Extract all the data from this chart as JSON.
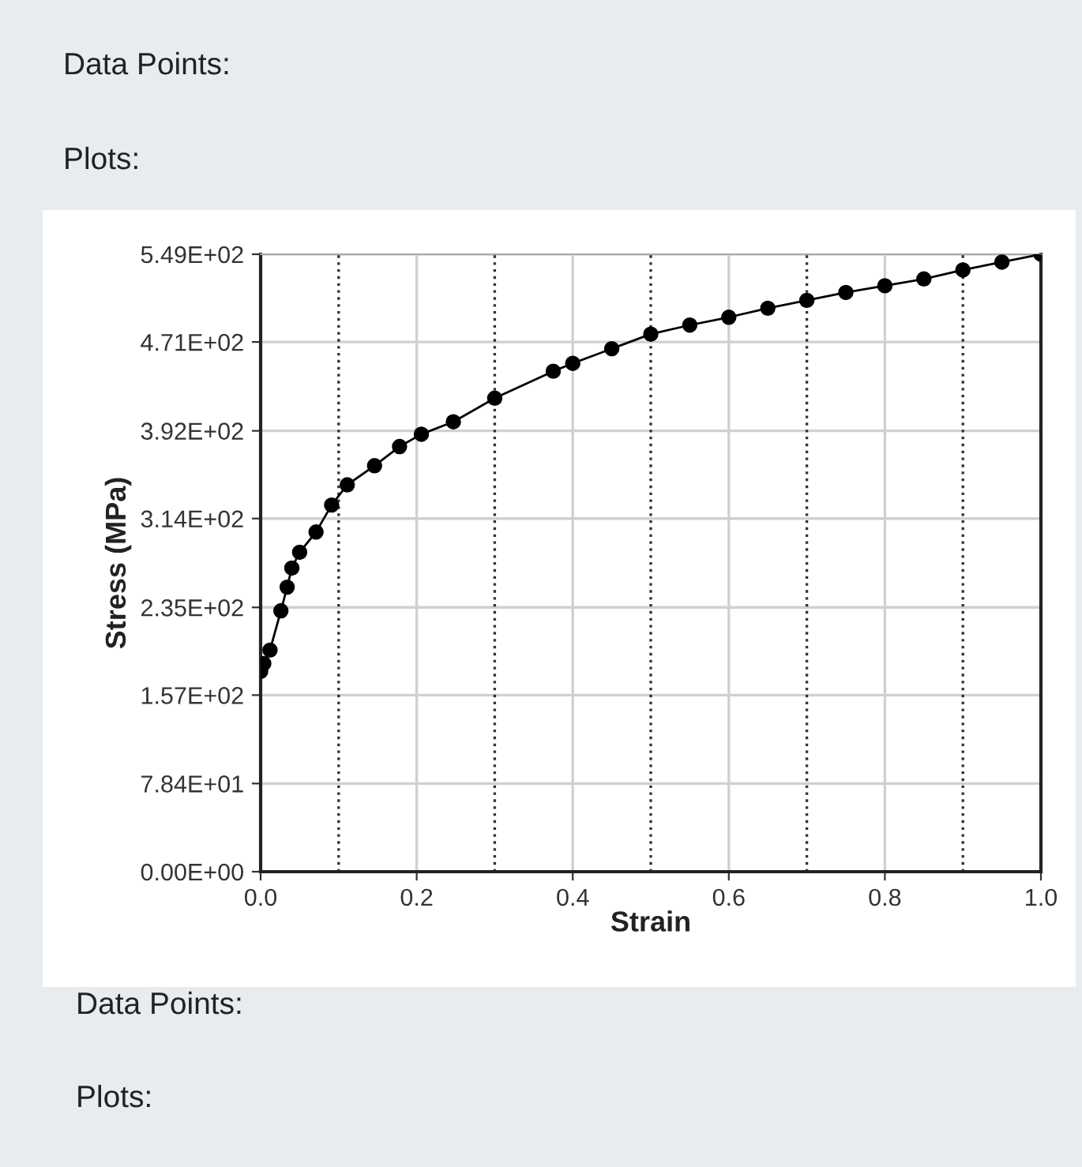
{
  "chart_data": {
    "type": "line",
    "xlabel": "Strain",
    "ylabel": "Stress (MPa)",
    "annotations": [
      "Data Points:",
      "Plots:",
      "Data Points:",
      "Plots:"
    ],
    "series": [
      {
        "color": "#000000",
        "x": [
          0.0,
          0.004,
          0.012,
          0.026,
          0.034,
          0.04,
          0.05,
          0.071,
          0.091,
          0.111,
          0.146,
          0.178,
          0.206,
          0.247,
          0.3,
          0.375,
          0.4,
          0.45,
          0.5,
          0.55,
          0.6,
          0.65,
          0.7,
          0.75,
          0.8,
          0.85,
          0.9,
          0.95,
          1.0
        ],
        "values": [
          178,
          185,
          197,
          232,
          253,
          270,
          284,
          302,
          326,
          344,
          361,
          378,
          389,
          400,
          421,
          445,
          452,
          465,
          478,
          486,
          493,
          501,
          508,
          515,
          521,
          527,
          535,
          542,
          549
        ]
      }
    ],
    "xlim": [
      0,
      1
    ],
    "xticks": [
      {
        "value": 0,
        "label": "0.0"
      },
      0.2,
      0.4,
      0.6,
      0.8,
      {
        "value": 1,
        "label": "1.0"
      }
    ],
    "ylim": [
      0,
      549
    ],
    "yticks": [
      {
        "value": 0,
        "label": "0.00E+00"
      },
      {
        "value": 78.4,
        "label": "7.84E+01"
      },
      {
        "value": 157,
        "label": "1.57E+02"
      },
      {
        "value": 235,
        "label": "2.35E+02"
      },
      {
        "value": 314,
        "label": "3.14E+02"
      },
      {
        "value": 392,
        "label": "3.92E+02"
      },
      {
        "value": 471,
        "label": "4.71E+02"
      },
      {
        "value": 549,
        "label": "5.49E+02"
      }
    ],
    "ref_lines": [
      {
        "axis": "x",
        "value": 0.1,
        "line_style": "dotted",
        "color": "#333333"
      },
      {
        "axis": "x",
        "value": 0.3,
        "line_style": "dotted",
        "color": "#333333"
      },
      {
        "axis": "x",
        "value": 0.5,
        "line_style": "dotted",
        "color": "#333333"
      },
      {
        "axis": "x",
        "value": 0.7,
        "line_style": "dotted",
        "color": "#333333"
      },
      {
        "axis": "x",
        "value": 0.9,
        "line_style": "dotted",
        "color": "#333333"
      }
    ],
    "grid": true,
    "marker": "circle",
    "line_style": "solid",
    "legend": false
  }
}
